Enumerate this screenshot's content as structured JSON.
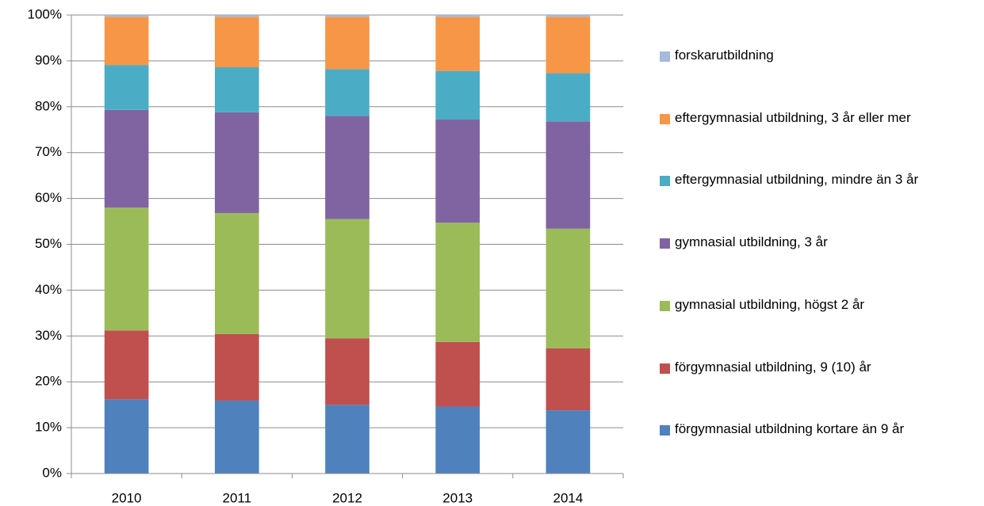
{
  "chart_data": {
    "type": "stacked_bar",
    "categories": [
      "2010",
      "2011",
      "2012",
      "2013",
      "2014"
    ],
    "series": [
      {
        "name": "förgymnasial utbildning kortare än 9 år",
        "color": "#4f81bd",
        "values": [
          16.2,
          15.9,
          15.0,
          14.6,
          13.8
        ]
      },
      {
        "name": "förgymnasial utbildning, 9 (10) år",
        "color": "#c0504d",
        "values": [
          15.0,
          14.5,
          14.5,
          14.1,
          13.5
        ]
      },
      {
        "name": "gymnasial utbildning, högst 2 år",
        "color": "#9bbb59",
        "values": [
          26.8,
          26.4,
          26.0,
          26.0,
          26.1
        ]
      },
      {
        "name": "gymnasial utbildning, 3 år",
        "color": "#8064a2",
        "values": [
          21.3,
          22.0,
          22.5,
          22.5,
          23.4
        ]
      },
      {
        "name": "eftergymnasial utbildning, mindre än 3 år",
        "color": "#4bacc6",
        "values": [
          9.8,
          9.8,
          10.2,
          10.6,
          10.5
        ]
      },
      {
        "name": "eftergymnasial utbildning, 3 år eller mer",
        "color": "#f79646",
        "values": [
          10.5,
          11.0,
          11.4,
          11.8,
          12.3
        ]
      },
      {
        "name": "forskarutbildning",
        "color": "#a7b9dc",
        "values": [
          0.4,
          0.4,
          0.4,
          0.4,
          0.4
        ]
      }
    ],
    "ylim": [
      0,
      100
    ],
    "yticks": [
      {
        "value": 0,
        "label": "0%"
      },
      {
        "value": 10,
        "label": "10%"
      },
      {
        "value": 20,
        "label": "20%"
      },
      {
        "value": 30,
        "label": "30%"
      },
      {
        "value": 40,
        "label": "40%"
      },
      {
        "value": 50,
        "label": "50%"
      },
      {
        "value": 60,
        "label": "60%"
      },
      {
        "value": 70,
        "label": "70%"
      },
      {
        "value": 80,
        "label": "80%"
      },
      {
        "value": 90,
        "label": "90%"
      },
      {
        "value": 100,
        "label": "100%"
      }
    ],
    "grid": true,
    "legend": "right"
  }
}
